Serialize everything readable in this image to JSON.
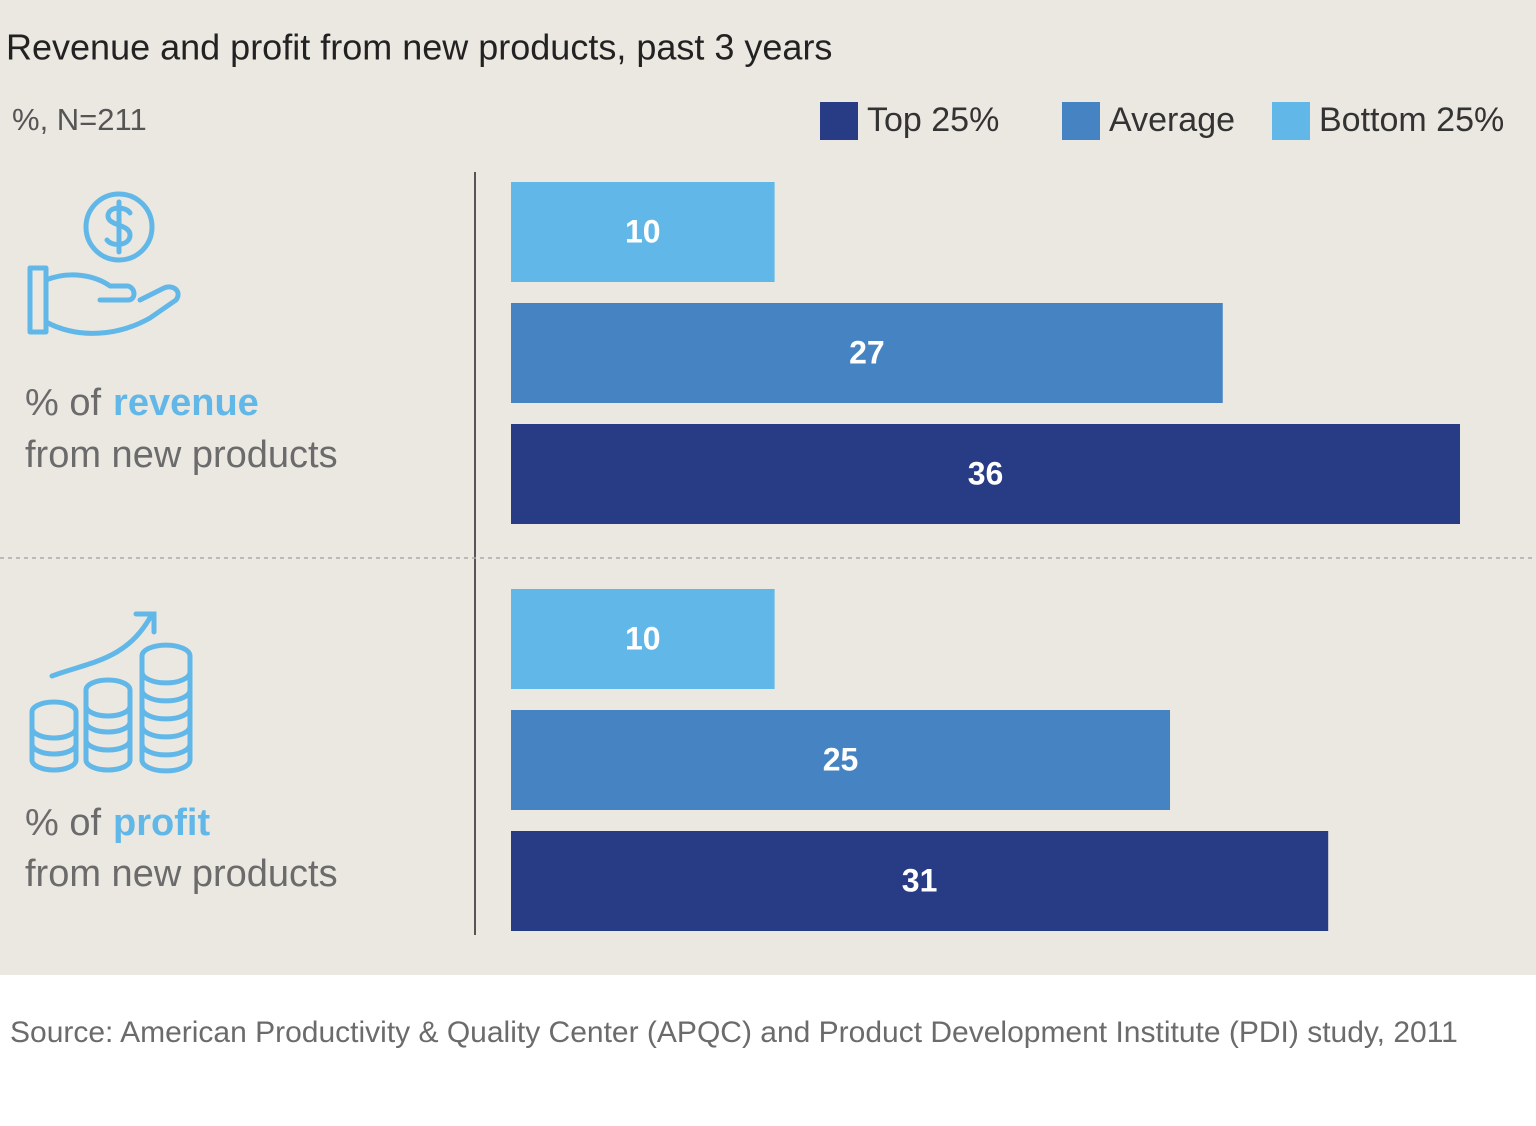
{
  "chart_data": {
    "type": "bar",
    "orientation": "horizontal",
    "title": "Revenue and profit from new products, past 3 years",
    "subtitle": "%, N=211",
    "categories": [
      {
        "lead": "% of",
        "key": "revenue",
        "rest": "from new products"
      },
      {
        "lead": "% of",
        "key": "profit",
        "rest": "from new products"
      }
    ],
    "series": [
      {
        "name": "Top 25%",
        "color": "#283c85",
        "values": [
          36,
          31
        ]
      },
      {
        "name": "Average",
        "color": "#4683c3",
        "values": [
          27,
          25
        ]
      },
      {
        "name": "Bottom 25%",
        "color": "#61b8e8",
        "values": [
          10,
          10
        ]
      }
    ],
    "source": "Source: American Productivity & Quality Center (APQC) and Product Development Institute (PDI) study, 2011"
  }
}
